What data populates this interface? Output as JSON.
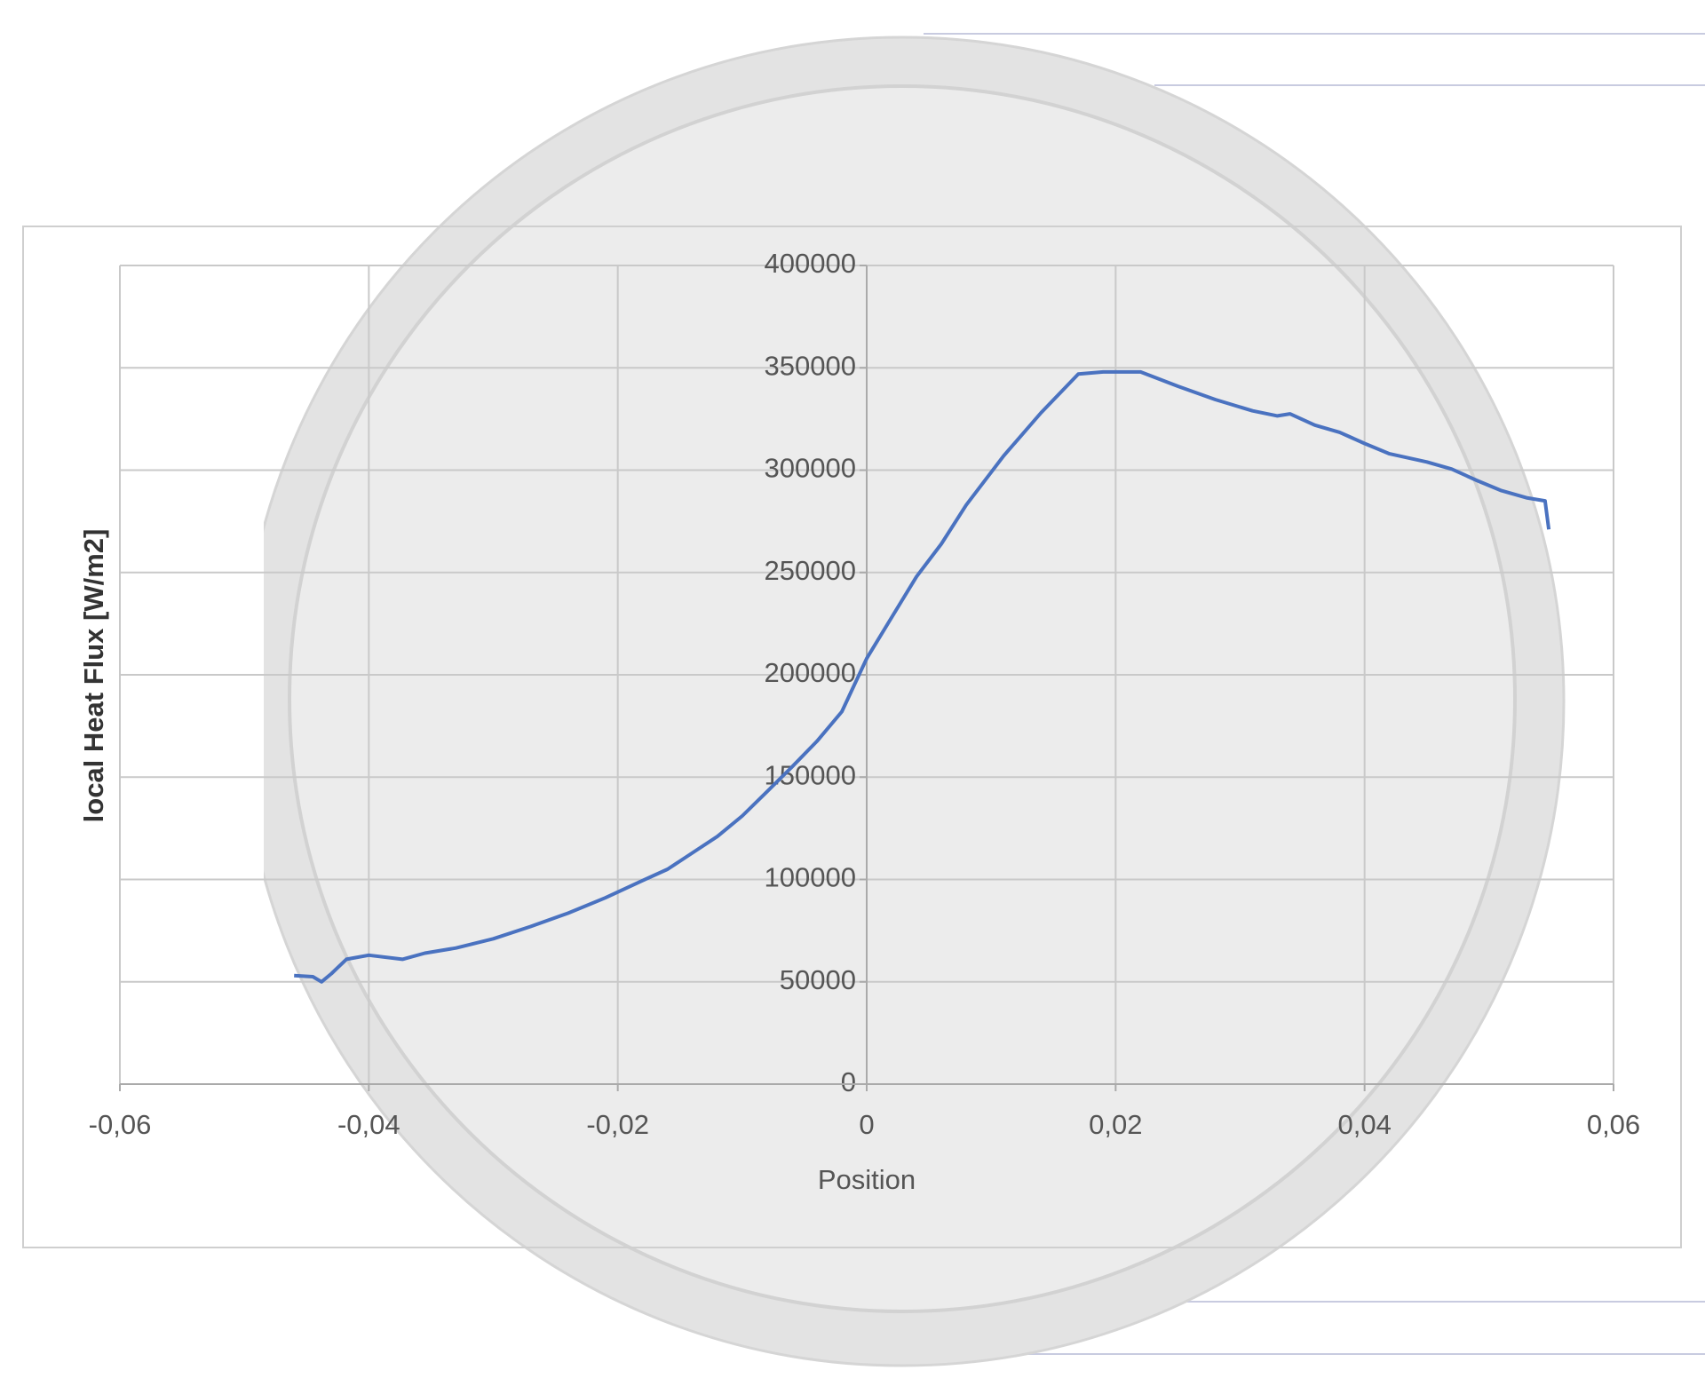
{
  "chart_data": {
    "type": "line",
    "x_label": "Position",
    "y_label": "local Heat Flux [W/m2]",
    "xlim": [
      -0.06,
      0.06
    ],
    "xticks": [
      {
        "value": -0.06,
        "label": "-0,06"
      },
      {
        "value": -0.04,
        "label": "-0,04"
      },
      {
        "value": -0.02,
        "label": "-0,02"
      },
      0,
      {
        "value": 0.02,
        "label": "0,02"
      },
      {
        "value": 0.04,
        "label": "0,04"
      },
      {
        "value": 0.06,
        "label": "0,06"
      }
    ],
    "ylim": [
      0,
      400000
    ],
    "yticks": [
      0,
      50000,
      100000,
      150000,
      200000,
      250000,
      300000,
      350000,
      400000
    ],
    "grid": true,
    "series": [
      {
        "color": "#4a72c0",
        "x": [
          -0.046,
          -0.0445,
          -0.0438,
          -0.043,
          -0.0418,
          -0.04,
          -0.0373,
          -0.0355,
          -0.033,
          -0.03,
          -0.027,
          -0.024,
          -0.021,
          -0.018,
          -0.016,
          -0.014,
          -0.012,
          -0.01,
          -0.008,
          -0.006,
          -0.004,
          -0.002,
          -0.001,
          0,
          0.002,
          0.004,
          0.006,
          0.008,
          0.011,
          0.014,
          0.017,
          0.019,
          0.022,
          0.025,
          0.028,
          0.031,
          0.033,
          0.034,
          0.036,
          0.038,
          0.04,
          0.042,
          0.045,
          0.047,
          0.049,
          0.051,
          0.053,
          0.0545,
          0.0548
        ],
        "values": [
          53000,
          52500,
          50000,
          54000,
          61000,
          63000,
          61000,
          64000,
          66500,
          71000,
          77000,
          83500,
          91000,
          99500,
          105000,
          113000,
          121000,
          131000,
          143000,
          155000,
          167500,
          182000,
          195000,
          208000,
          228000,
          248000,
          264000,
          283000,
          307000,
          328000,
          347000,
          348000,
          348000,
          341000,
          334500,
          329000,
          326500,
          327500,
          322000,
          318500,
          313000,
          308000,
          304000,
          300500,
          295000,
          290000,
          286500,
          285000,
          271000
        ]
      }
    ]
  }
}
